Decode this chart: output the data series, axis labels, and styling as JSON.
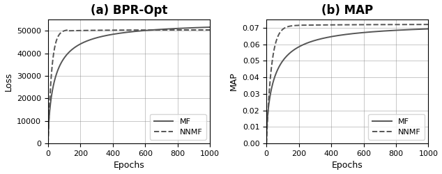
{
  "title_left": "(a) BPR-Opt",
  "title_right": "(b) MAP",
  "xlabel": "Epochs",
  "ylabel_left": "Loss",
  "ylabel_right": "MAP",
  "xlim": [
    0,
    1000
  ],
  "ylim_left": [
    0,
    55000
  ],
  "ylim_right": [
    0,
    0.075
  ],
  "yticks_left": [
    0,
    10000,
    20000,
    30000,
    40000,
    50000
  ],
  "yticks_right": [
    0.0,
    0.01,
    0.02,
    0.03,
    0.04,
    0.05,
    0.06,
    0.07
  ],
  "xticks": [
    0,
    200,
    400,
    600,
    800,
    1000
  ],
  "line_color": "#555555",
  "legend_mf": "MF",
  "legend_nnmf": "NNMF",
  "title_fontsize": 12,
  "label_fontsize": 9,
  "tick_fontsize": 8,
  "legend_fontsize": 8,
  "figsize": [
    6.34,
    2.5
  ],
  "dpi": 100
}
